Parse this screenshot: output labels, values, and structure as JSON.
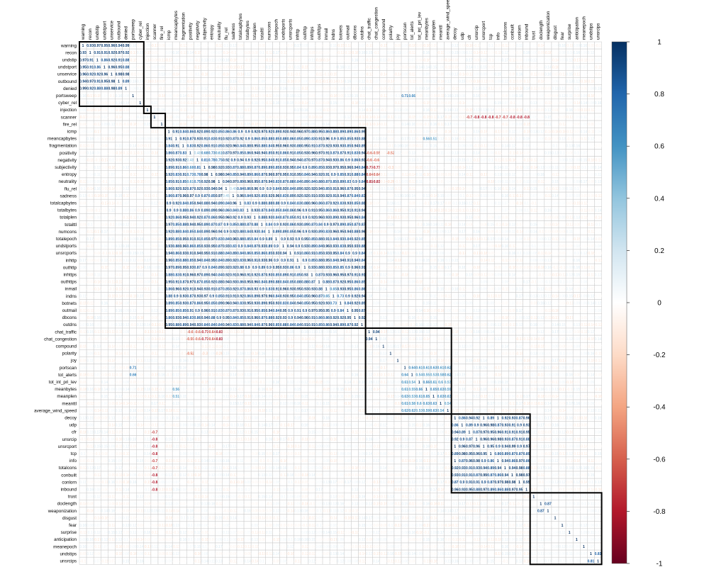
{
  "chart_data": {
    "type": "heatmap",
    "title": "",
    "xlabel": "",
    "ylabel": "",
    "variables": [
      "warning",
      "recon",
      "undstip",
      "undstport",
      "unservice",
      "outbound",
      "denied",
      "portsweep",
      "cyber_rel",
      "injection",
      "scanner",
      "fire_rel",
      "icmp",
      "meancapbytes",
      "fragmentation",
      "positivity",
      "negativity",
      "subjectivity",
      "entropy",
      "neutrality",
      "flu_rel",
      "sadness",
      "totalcapbytes",
      "totalbytes",
      "totalplen",
      "totalttl",
      "numcons",
      "totalepoch",
      "undstports",
      "unsrcports",
      "inhttp",
      "outhttp",
      "inhttps",
      "outhttps",
      "inmail",
      "indns",
      "botnets",
      "outmail",
      "dbcons",
      "outdns",
      "chat_traffic",
      "chat_congestion",
      "compound",
      "polarity",
      "joy",
      "portscan",
      "tot_alerts",
      "tot_int_pri_lev",
      "meanbytes",
      "meanplen",
      "meanttl",
      "average_wind_speed",
      "decoy",
      "udp",
      "cfr",
      "unsrcip",
      "unsrcport",
      "tcp",
      "info",
      "totalcons",
      "conbuilt",
      "conlorn",
      "inbound",
      "trust",
      "doclength",
      "weaponization",
      "disgust",
      "fear",
      "surprise",
      "anticipation",
      "meanepoch",
      "undstips",
      "unsrcips"
    ],
    "color_scale": {
      "min": -1,
      "max": 1,
      "ticks": [
        "1",
        "0.8",
        "0.6",
        "0.4",
        "0.2",
        "0",
        "-0.2",
        "-0.4",
        "-0.6",
        "-0.8",
        "-1"
      ],
      "colors": [
        "#67001f",
        "#b2182b",
        "#d6604d",
        "#f4a582",
        "#fddbc7",
        "#ffffff",
        "#d1e5f0",
        "#92c5de",
        "#4393c3",
        "#2166ac",
        "#053061"
      ]
    },
    "clusters": [
      [
        0,
        8
      ],
      [
        9,
        9
      ],
      [
        10,
        11
      ],
      [
        12,
        39
      ],
      [
        40,
        51
      ],
      [
        52,
        62
      ],
      [
        63,
        72
      ]
    ],
    "blocks": [
      {
        "range": [
          0,
          6
        ],
        "value": 0.92
      },
      {
        "range": [
          12,
          39
        ],
        "value": 0.9
      },
      {
        "range": [
          40,
          41
        ],
        "value": 0.98
      },
      {
        "range": [
          45,
          51
        ],
        "value": 0.6
      },
      {
        "range": [
          52,
          62
        ],
        "value": 0.93
      },
      {
        "range": [
          63,
          72
        ],
        "value": 0.05
      }
    ],
    "pairs": [
      {
        "a": 15,
        "b": 16,
        "value": 0.48
      },
      {
        "a": 15,
        "b": 17,
        "value": 0.68
      },
      {
        "a": 15,
        "b": 18,
        "value": 0.73
      },
      {
        "a": 15,
        "b": 19,
        "value": 0.61
      },
      {
        "a": 16,
        "b": 17,
        "value": 0.81
      },
      {
        "a": 16,
        "b": 18,
        "value": 0.78
      },
      {
        "a": 16,
        "b": 19,
        "value": 0.75
      },
      {
        "a": 17,
        "b": 18,
        "value": 0.98
      },
      {
        "a": 17,
        "b": 19,
        "value": 0.92
      },
      {
        "a": 18,
        "b": 19,
        "value": 0.98
      },
      {
        "a": 20,
        "b": 21,
        "value": 0.45
      },
      {
        "a": 34,
        "b": 35,
        "value": 0.65
      },
      {
        "a": 35,
        "b": 36,
        "value": 0.73
      },
      {
        "a": 7,
        "b": 45,
        "value": 0.71
      },
      {
        "a": 7,
        "b": 46,
        "value": 0.66
      },
      {
        "a": 40,
        "b": 15,
        "value": -0.6
      },
      {
        "a": 40,
        "b": 16,
        "value": -0.6
      },
      {
        "a": 40,
        "b": 17,
        "value": -0.77
      },
      {
        "a": 40,
        "b": 18,
        "value": -0.64
      },
      {
        "a": 40,
        "b": 19,
        "value": -0.81
      },
      {
        "a": 41,
        "b": 15,
        "value": -0.59
      },
      {
        "a": 41,
        "b": 16,
        "value": -0.6
      },
      {
        "a": 41,
        "b": 17,
        "value": -0.77
      },
      {
        "a": 41,
        "b": 18,
        "value": -0.64
      },
      {
        "a": 41,
        "b": 19,
        "value": -0.81
      },
      {
        "a": 43,
        "b": 15,
        "value": -0.52
      },
      {
        "a": 43,
        "b": 17,
        "value": -0.3
      },
      {
        "a": 43,
        "b": 19,
        "value": -0.26
      },
      {
        "a": 10,
        "b": 54,
        "value": -0.7
      },
      {
        "a": 10,
        "b": 55,
        "value": -0.8
      },
      {
        "a": 10,
        "b": 56,
        "value": -0.8
      },
      {
        "a": 10,
        "b": 57,
        "value": -0.8
      },
      {
        "a": 10,
        "b": 58,
        "value": -0.7
      },
      {
        "a": 10,
        "b": 59,
        "value": -0.7
      },
      {
        "a": 10,
        "b": 60,
        "value": -0.8
      },
      {
        "a": 10,
        "b": 61,
        "value": -0.8
      },
      {
        "a": 10,
        "b": 62,
        "value": -0.8
      },
      {
        "a": 71,
        "b": 72,
        "value": 0.81
      },
      {
        "a": 64,
        "b": 65,
        "value": 0.87
      },
      {
        "a": 13,
        "b": 48,
        "value": 0.56
      },
      {
        "a": 13,
        "b": 49,
        "value": 0.51
      }
    ]
  }
}
